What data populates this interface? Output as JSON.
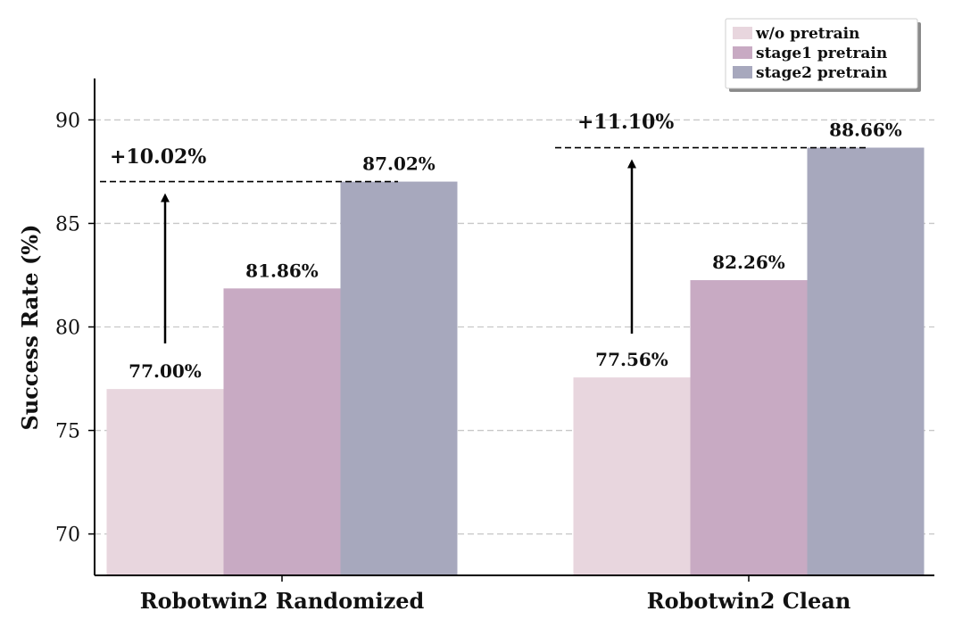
{
  "chart_data": {
    "type": "bar",
    "title": "",
    "xlabel": "",
    "ylabel": "Success Rate (%)",
    "ylim": [
      68,
      92
    ],
    "yticks": [
      70,
      75,
      80,
      85,
      90
    ],
    "grid": "y-dashed",
    "legend_position": "top-right",
    "categories": [
      "Robotwin2 Randomized",
      "Robotwin2 Clean"
    ],
    "series": [
      {
        "name": "w/o pretrain",
        "color": "#e8d6de",
        "values": [
          77.0,
          77.56
        ],
        "labels": [
          "77.00%",
          "77.56%"
        ]
      },
      {
        "name": "stage1 pretrain",
        "color": "#c8aac3",
        "values": [
          81.86,
          82.26
        ],
        "labels": [
          "81.86%",
          "82.26%"
        ]
      },
      {
        "name": "stage2 pretrain",
        "color": "#a7a8bd",
        "values": [
          87.02,
          88.66
        ],
        "labels": [
          "87.02%",
          "88.66%"
        ]
      }
    ],
    "annotations": [
      {
        "text": "+10.02%",
        "category": "Robotwin2 Randomized",
        "from": 77.0,
        "to": 87.02
      },
      {
        "text": "+11.10%",
        "category": "Robotwin2 Clean",
        "from": 77.56,
        "to": 88.66
      }
    ]
  }
}
